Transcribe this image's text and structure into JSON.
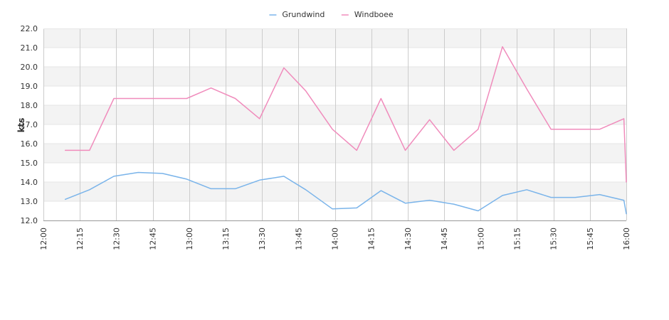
{
  "chart_data": {
    "type": "line",
    "title": "",
    "xlabel": "",
    "ylabel": "kts",
    "ylim": [
      12.0,
      22.0
    ],
    "y_ticks": [
      "12.0",
      "13.0",
      "14.0",
      "15.0",
      "16.0",
      "17.0",
      "18.0",
      "19.0",
      "20.0",
      "21.0",
      "22.0"
    ],
    "x_range": [
      "12:00",
      "16:00"
    ],
    "x_ticks": [
      "12:00",
      "12:15",
      "12:30",
      "12:45",
      "13:00",
      "13:15",
      "13:30",
      "13:45",
      "14:00",
      "14:15",
      "14:30",
      "14:45",
      "15:00",
      "15:15",
      "15:30",
      "15:45",
      "16:00"
    ],
    "grid": true,
    "legend_position": "top-center",
    "series": [
      {
        "name": "Grundwind",
        "color": "#7ab4ea",
        "points": [
          [
            "12:09",
            13.1
          ],
          [
            "12:19",
            13.6
          ],
          [
            "12:29",
            14.3
          ],
          [
            "12:39",
            14.5
          ],
          [
            "12:49",
            14.45
          ],
          [
            "12:59",
            14.15
          ],
          [
            "13:09",
            13.65
          ],
          [
            "13:19",
            13.65
          ],
          [
            "13:29",
            14.1
          ],
          [
            "13:39",
            14.3
          ],
          [
            "13:48",
            13.6
          ],
          [
            "13:59",
            12.6
          ],
          [
            "14:09",
            12.65
          ],
          [
            "14:19",
            13.55
          ],
          [
            "14:29",
            12.9
          ],
          [
            "14:39",
            13.05
          ],
          [
            "14:49",
            12.85
          ],
          [
            "14:59",
            12.5
          ],
          [
            "15:09",
            13.3
          ],
          [
            "15:19",
            13.6
          ],
          [
            "15:29",
            13.2
          ],
          [
            "15:39",
            13.2
          ],
          [
            "15:49",
            13.35
          ],
          [
            "15:59",
            13.05
          ],
          [
            "16:00",
            12.35
          ]
        ]
      },
      {
        "name": "Windboee",
        "color": "#f08cbc",
        "points": [
          [
            "12:09",
            15.65
          ],
          [
            "12:19",
            15.65
          ],
          [
            "12:29",
            18.35
          ],
          [
            "12:39",
            18.35
          ],
          [
            "12:49",
            18.35
          ],
          [
            "12:59",
            18.35
          ],
          [
            "13:09",
            18.9
          ],
          [
            "13:19",
            18.35
          ],
          [
            "13:29",
            17.3
          ],
          [
            "13:39",
            19.95
          ],
          [
            "13:48",
            18.75
          ],
          [
            "13:59",
            16.75
          ],
          [
            "14:09",
            15.65
          ],
          [
            "14:19",
            18.35
          ],
          [
            "14:29",
            15.65
          ],
          [
            "14:39",
            17.25
          ],
          [
            "14:49",
            15.65
          ],
          [
            "14:59",
            16.75
          ],
          [
            "15:09",
            21.05
          ],
          [
            "15:19",
            18.85
          ],
          [
            "15:29",
            16.75
          ],
          [
            "15:39",
            16.75
          ],
          [
            "15:49",
            16.75
          ],
          [
            "15:59",
            17.3
          ],
          [
            "16:00",
            14.0
          ]
        ]
      }
    ]
  }
}
